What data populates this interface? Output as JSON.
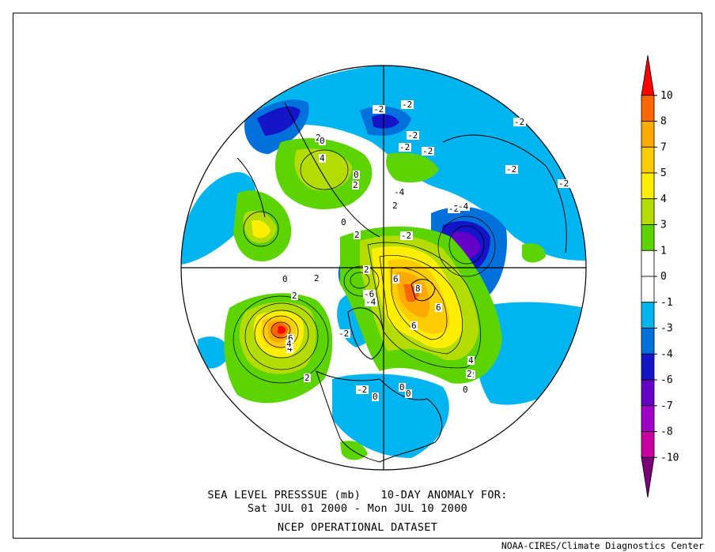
{
  "title": {
    "line1": "SEA LEVEL PRESSSUE (mb)   10-DAY ANOMALY FOR:",
    "line2": "Sat JUL 01 2000 - Mon JUL 10 2000",
    "line3": "NCEP OPERATIONAL DATASET"
  },
  "credit": "NOAA-CIRES/Climate Diagnostics Center",
  "colorbar": {
    "labels": [
      "10",
      "8",
      "7",
      "5",
      "4",
      "3",
      "1",
      "0",
      "-1",
      "-3",
      "-4",
      "-6",
      "-7",
      "-8",
      "-10"
    ],
    "colors": [
      "#ff0000",
      "#ff6600",
      "#ffaa00",
      "#ffcc00",
      "#ffee00",
      "#b4dc00",
      "#5cd400",
      "#ffffff",
      "#ffffff",
      "#00b4f0",
      "#0070dc",
      "#1414c8",
      "#6400c8",
      "#a000c8",
      "#c800a0",
      "#780078"
    ]
  },
  "contour_labels": [
    {
      "text": "-2"
    },
    {
      "text": "-2"
    },
    {
      "text": "-2"
    },
    {
      "text": "-2"
    },
    {
      "text": "-2"
    },
    {
      "text": "-2"
    },
    {
      "text": "-2"
    },
    {
      "text": "-2"
    },
    {
      "text": "-2"
    },
    {
      "text": "-4"
    },
    {
      "text": "-4"
    },
    {
      "text": "-6"
    },
    {
      "text": "-4"
    },
    {
      "text": "-2"
    },
    {
      "text": "-2"
    },
    {
      "text": "2"
    },
    {
      "text": "2"
    },
    {
      "text": "4"
    },
    {
      "text": "2"
    },
    {
      "text": "2"
    },
    {
      "text": "2"
    },
    {
      "text": "2"
    },
    {
      "text": "6"
    },
    {
      "text": "4"
    },
    {
      "text": "8"
    },
    {
      "text": "6"
    },
    {
      "text": "6"
    },
    {
      "text": "4"
    },
    {
      "text": "2"
    },
    {
      "text": "0"
    },
    {
      "text": "0"
    },
    {
      "text": "0"
    },
    {
      "text": "0"
    },
    {
      "text": "0"
    },
    {
      "text": "0"
    },
    {
      "text": "2"
    },
    {
      "text": "2"
    },
    {
      "text": "0"
    },
    {
      "text": "-2"
    },
    {
      "text": "0"
    },
    {
      "text": "6"
    },
    {
      "text": "4"
    },
    {
      "text": "2"
    }
  ]
}
